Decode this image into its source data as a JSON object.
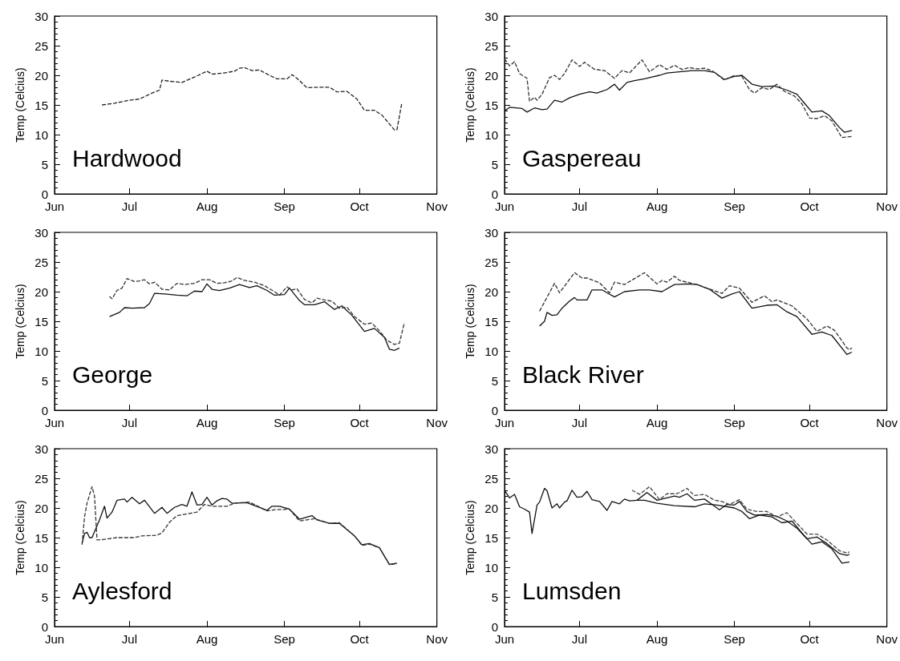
{
  "chart_data": [
    {
      "type": "line",
      "ylabel": "Temp (Celcius)",
      "annotations": [
        "Hardwood"
      ],
      "xlim": [
        "--06-01",
        "--11-01"
      ],
      "xticks": [
        {
          "value": "--06-01",
          "label": "Jun"
        },
        {
          "value": "--07-01",
          "label": "Jul"
        },
        {
          "value": "--08-01",
          "label": "Aug"
        },
        {
          "value": "--09-01",
          "label": "Sep"
        },
        {
          "value": "--10-01",
          "label": "Oct"
        },
        {
          "value": "--11-01",
          "label": "Nov"
        }
      ],
      "ylim": [
        0,
        30
      ],
      "yticks": [
        0,
        5,
        10,
        15,
        20,
        25,
        30
      ],
      "series": [
        {
          "color": "#222222",
          "line_style": "dashed",
          "x": [
            "--06-20",
            "--06-25",
            "--07-01",
            "--07-05",
            "--07-10",
            "--07-13",
            "--07-14",
            "--07-17",
            "--07-22",
            "--07-27",
            "--07-30",
            "--08-01",
            "--08-03",
            "--08-08",
            "--08-12",
            "--08-14",
            "--08-16",
            "--08-19",
            "--08-22",
            "--08-26",
            "--08-29",
            "--09-02",
            "--09-04",
            "--09-06",
            "--09-10",
            "--09-15",
            "--09-19",
            "--09-22",
            "--09-26",
            "--09-30",
            "--10-03",
            "--10-07",
            "--10-10",
            "--10-13",
            "--10-15",
            "--10-16",
            "--10-18"
          ],
          "values": [
            15,
            15.3,
            15.8,
            16,
            17,
            17.5,
            19.2,
            19,
            18.8,
            19.7,
            20.3,
            20.7,
            20.2,
            20.4,
            20.7,
            21.2,
            21.3,
            20.8,
            20.9,
            20,
            19.4,
            19.4,
            20.1,
            19.5,
            17.9,
            18,
            18,
            17.2,
            17.3,
            16,
            14.1,
            14.1,
            13.3,
            11.8,
            10.8,
            10.8,
            15.4
          ]
        }
      ]
    },
    {
      "type": "line",
      "ylabel": "Temp (Celcius)",
      "annotations": [
        "Gaspereau"
      ],
      "xlim": [
        "--06-01",
        "--11-01"
      ],
      "xticks": [
        {
          "value": "--06-01",
          "label": "Jun"
        },
        {
          "value": "--07-01",
          "label": "Jul"
        },
        {
          "value": "--08-01",
          "label": "Aug"
        },
        {
          "value": "--09-01",
          "label": "Sep"
        },
        {
          "value": "--10-01",
          "label": "Oct"
        },
        {
          "value": "--11-01",
          "label": "Nov"
        }
      ],
      "ylim": [
        0,
        30
      ],
      "yticks": [
        0,
        5,
        10,
        15,
        20,
        25,
        30
      ],
      "series": [
        {
          "color": "#111111",
          "line_style": "solid",
          "x": [
            "--06-01",
            "--06-03",
            "--06-08",
            "--06-10",
            "--06-13",
            "--06-16",
            "--06-18",
            "--06-21",
            "--06-24",
            "--06-27",
            "--07-01",
            "--07-05",
            "--07-08",
            "--07-12",
            "--07-15",
            "--07-17",
            "--07-20",
            "--07-23",
            "--07-27",
            "--07-30",
            "--08-02",
            "--08-05",
            "--08-10",
            "--08-15",
            "--08-20",
            "--08-24",
            "--08-28",
            "--09-01",
            "--09-04",
            "--09-08",
            "--09-12",
            "--09-17",
            "--09-22",
            "--09-26",
            "--09-29",
            "--10-02",
            "--10-06",
            "--10-09",
            "--10-13",
            "--10-15",
            "--10-18"
          ],
          "values": [
            14,
            14.6,
            14.4,
            13.8,
            14.5,
            14.2,
            14.3,
            15.8,
            15.5,
            16.2,
            16.8,
            17.2,
            17,
            17.6,
            18.5,
            17.5,
            18.8,
            19.1,
            19.4,
            19.7,
            20,
            20.4,
            20.6,
            20.8,
            20.8,
            20.5,
            19.3,
            19.8,
            20,
            18.5,
            18.1,
            18.2,
            17.5,
            16.8,
            15.3,
            13.8,
            14,
            13.2,
            11.2,
            10.4,
            10.7
          ]
        },
        {
          "color": "#333333",
          "line_style": "dashed",
          "x": [
            "--06-01",
            "--06-03",
            "--06-05",
            "--06-07",
            "--06-10",
            "--06-11",
            "--06-13",
            "--06-14",
            "--06-16",
            "--06-19",
            "--06-21",
            "--06-23",
            "--06-25",
            "--06-28",
            "--07-01",
            "--07-03",
            "--07-07",
            "--07-11",
            "--07-15",
            "--07-18",
            "--07-21",
            "--07-26",
            "--07-29",
            "--08-02",
            "--08-05",
            "--08-08",
            "--08-11",
            "--08-14",
            "--08-17",
            "--08-20",
            "--08-23",
            "--08-28",
            "--09-01",
            "--09-04",
            "--09-07",
            "--09-09",
            "--09-12",
            "--09-15",
            "--09-18",
            "--09-21",
            "--09-25",
            "--09-28",
            "--10-01",
            "--10-04",
            "--10-07",
            "--10-10",
            "--10-14",
            "--10-18"
          ],
          "values": [
            22.8,
            21.6,
            22.3,
            20.3,
            19.5,
            15.6,
            16.3,
            15.8,
            16.8,
            19.6,
            20,
            19.3,
            20.3,
            22.6,
            21.5,
            22.2,
            21,
            20.8,
            19.5,
            20.8,
            20.4,
            22.6,
            20.6,
            21.8,
            21,
            21.7,
            21,
            21.3,
            21.1,
            21.2,
            20.8,
            19.2,
            20,
            19.8,
            17.6,
            17,
            17.9,
            17.6,
            18.5,
            17.3,
            16.5,
            15.2,
            12.8,
            12.7,
            13.2,
            12.3,
            9.5,
            9.7
          ]
        }
      ]
    },
    {
      "type": "line",
      "ylabel": "Temp (Celcius)",
      "annotations": [
        "George"
      ],
      "xlim": [
        "--06-01",
        "--11-01"
      ],
      "xticks": [
        {
          "value": "--06-01",
          "label": "Jun"
        },
        {
          "value": "--07-01",
          "label": "Jul"
        },
        {
          "value": "--08-01",
          "label": "Aug"
        },
        {
          "value": "--09-01",
          "label": "Sep"
        },
        {
          "value": "--10-01",
          "label": "Oct"
        },
        {
          "value": "--11-01",
          "label": "Nov"
        }
      ],
      "ylim": [
        0,
        30
      ],
      "yticks": [
        0,
        5,
        10,
        15,
        20,
        25,
        30
      ],
      "series": [
        {
          "color": "#111111",
          "line_style": "solid",
          "x": [
            "--06-23",
            "--06-27",
            "--06-29",
            "--07-02",
            "--07-07",
            "--07-09",
            "--07-11",
            "--07-15",
            "--07-20",
            "--07-24",
            "--07-27",
            "--07-30",
            "--08-01",
            "--08-03",
            "--08-06",
            "--08-10",
            "--08-14",
            "--08-18",
            "--08-21",
            "--08-25",
            "--08-28",
            "--09-01",
            "--09-03",
            "--09-07",
            "--09-09",
            "--09-13",
            "--09-17",
            "--09-21",
            "--09-24",
            "--09-28",
            "--10-03",
            "--10-07",
            "--10-11",
            "--10-13",
            "--10-15",
            "--10-17"
          ],
          "values": [
            15.8,
            16.5,
            17.3,
            17.2,
            17.3,
            18,
            19.7,
            19.6,
            19.4,
            19.3,
            20.1,
            20,
            21.3,
            20.4,
            20.2,
            20.6,
            21.2,
            20.7,
            21,
            20.2,
            19.4,
            19.5,
            20.6,
            18.5,
            17.8,
            17.8,
            18.3,
            17,
            17.6,
            16,
            13.3,
            13.8,
            12.3,
            10.3,
            10.1,
            10.5
          ]
        },
        {
          "color": "#333333",
          "line_style": "dashed",
          "x": [
            "--06-23",
            "--06-24",
            "--06-26",
            "--06-28",
            "--06-30",
            "--07-03",
            "--07-05",
            "--07-07",
            "--07-09",
            "--07-11",
            "--07-14",
            "--07-17",
            "--07-20",
            "--07-23",
            "--07-27",
            "--07-30",
            "--08-02",
            "--08-05",
            "--08-08",
            "--08-11",
            "--08-13",
            "--08-16",
            "--08-20",
            "--08-24",
            "--08-28",
            "--08-30",
            "--09-02",
            "--09-04",
            "--09-06",
            "--09-09",
            "--09-12",
            "--09-14",
            "--09-17",
            "--09-20",
            "--09-23",
            "--09-26",
            "--09-29",
            "--10-03",
            "--10-06",
            "--10-09",
            "--10-12",
            "--10-15",
            "--10-17",
            "--10-19"
          ],
          "values": [
            19.2,
            18.8,
            20.2,
            20.6,
            22.2,
            21.7,
            21.8,
            22,
            21.3,
            21.6,
            20.4,
            20.3,
            21.4,
            21.2,
            21.4,
            22,
            22,
            21.4,
            21.5,
            21.8,
            22.4,
            21.9,
            21.6,
            21,
            20,
            19.4,
            20.8,
            20.3,
            20.5,
            18.7,
            18.1,
            18.9,
            18.6,
            18.4,
            17.2,
            17.4,
            15.8,
            14.5,
            14.7,
            13.4,
            11.8,
            11.1,
            11.3,
            14.8
          ]
        }
      ]
    },
    {
      "type": "line",
      "ylabel": "Temp (Celcius)",
      "annotations": [
        "Black River"
      ],
      "xlim": [
        "--06-01",
        "--11-01"
      ],
      "xticks": [
        {
          "value": "--06-01",
          "label": "Jun"
        },
        {
          "value": "--07-01",
          "label": "Jul"
        },
        {
          "value": "--08-01",
          "label": "Aug"
        },
        {
          "value": "--09-01",
          "label": "Sep"
        },
        {
          "value": "--10-01",
          "label": "Oct"
        },
        {
          "value": "--11-01",
          "label": "Nov"
        }
      ],
      "ylim": [
        0,
        30
      ],
      "yticks": [
        0,
        5,
        10,
        15,
        20,
        25,
        30
      ],
      "series": [
        {
          "color": "#111111",
          "line_style": "solid",
          "x": [
            "--06-15",
            "--06-17",
            "--06-18",
            "--06-20",
            "--06-22",
            "--06-24",
            "--06-27",
            "--06-29",
            "--06-30",
            "--07-04",
            "--07-06",
            "--07-10",
            "--07-15",
            "--07-19",
            "--07-25",
            "--07-29",
            "--08-03",
            "--08-08",
            "--08-13",
            "--08-17",
            "--08-22",
            "--08-27",
            "--08-31",
            "--09-03",
            "--09-08",
            "--09-14",
            "--09-18",
            "--09-22",
            "--09-26",
            "--10-02",
            "--10-06",
            "--10-10",
            "--10-16",
            "--10-18"
          ],
          "values": [
            14.2,
            15,
            16.5,
            16,
            16.1,
            17.2,
            18.4,
            19,
            18.6,
            18.6,
            20.3,
            20.3,
            19.1,
            20,
            20.3,
            20.3,
            20,
            21.2,
            21.3,
            21.2,
            20.4,
            18.9,
            19.6,
            20,
            17.2,
            17.7,
            17.8,
            16.6,
            15.8,
            12.8,
            13.2,
            12.6,
            9.4,
            9.8
          ]
        },
        {
          "color": "#333333",
          "line_style": "dashed",
          "x": [
            "--06-15",
            "--06-21",
            "--06-23",
            "--06-29",
            "--07-02",
            "--07-04",
            "--07-09",
            "--07-13",
            "--07-15",
            "--07-19",
            "--07-27",
            "--08-01",
            "--08-03",
            "--08-05",
            "--08-08",
            "--08-10",
            "--08-17",
            "--08-27",
            "--08-30",
            "--09-03",
            "--09-08",
            "--09-13",
            "--09-16",
            "--09-18",
            "--09-24",
            "--09-30",
            "--10-04",
            "--10-08",
            "--10-11",
            "--10-16",
            "--10-17",
            "--10-18"
          ],
          "values": [
            16.7,
            21.4,
            19.8,
            23.2,
            22.3,
            22.3,
            21.5,
            19.8,
            21.6,
            21.2,
            23.2,
            21.3,
            21.9,
            21.6,
            22.6,
            21.9,
            21.2,
            19.7,
            21,
            20.6,
            18.2,
            19.3,
            18.3,
            18.6,
            17.6,
            15.4,
            13.3,
            14.2,
            13.5,
            10.5,
            10.2,
            10.5
          ]
        }
      ]
    },
    {
      "type": "line",
      "ylabel": "Temp (Celcius)",
      "annotations": [
        "Aylesford"
      ],
      "xlim": [
        "--06-01",
        "--11-01"
      ],
      "xticks": [
        {
          "value": "--06-01",
          "label": "Jun"
        },
        {
          "value": "--07-01",
          "label": "Jul"
        },
        {
          "value": "--08-01",
          "label": "Aug"
        },
        {
          "value": "--09-01",
          "label": "Sep"
        },
        {
          "value": "--10-01",
          "label": "Oct"
        },
        {
          "value": "--11-01",
          "label": "Nov"
        }
      ],
      "ylim": [
        0,
        30
      ],
      "yticks": [
        0,
        5,
        10,
        15,
        20,
        25,
        30
      ],
      "series": [
        {
          "color": "#111111",
          "line_style": "solid",
          "x": [
            "--06-12",
            "--06-13",
            "--06-14",
            "--06-15",
            "--06-16",
            "--06-19",
            "--06-21",
            "--06-22",
            "--06-24",
            "--06-26",
            "--06-29",
            "--06-30",
            "--07-02",
            "--07-05",
            "--07-07",
            "--07-11",
            "--07-14",
            "--07-16",
            "--07-19",
            "--07-22",
            "--07-24",
            "--07-26",
            "--07-28",
            "--07-30",
            "--08-01",
            "--08-03",
            "--08-05",
            "--08-07",
            "--08-09",
            "--08-11",
            "--08-17",
            "--08-25",
            "--08-27",
            "--08-30",
            "--09-03",
            "--09-07",
            "--09-12",
            "--09-14",
            "--09-19",
            "--09-23",
            "--09-29",
            "--10-02",
            "--10-05",
            "--10-09",
            "--10-13",
            "--10-16"
          ],
          "values": [
            14,
            15.7,
            15.9,
            15,
            15,
            18,
            20.3,
            18.3,
            19.3,
            21.3,
            21.5,
            21,
            21.8,
            20.7,
            21.3,
            19.1,
            20.1,
            19.1,
            20.1,
            20.6,
            20.3,
            22.7,
            20.5,
            20.6,
            21.8,
            20.5,
            21.2,
            21.6,
            21.5,
            20.8,
            20.9,
            19.6,
            20.3,
            20.3,
            19.8,
            18.1,
            18.7,
            18,
            17.4,
            17.4,
            15.3,
            13.8,
            14,
            13.3,
            10.5,
            10.7
          ]
        },
        {
          "color": "#333333",
          "line_style": "dashed",
          "x": [
            "--06-12",
            "--06-13",
            "--06-14",
            "--06-16",
            "--06-17",
            "--06-18",
            "--06-21",
            "--06-26",
            "--07-03",
            "--07-06",
            "--07-12",
            "--07-14",
            "--07-17",
            "--07-20",
            "--07-24",
            "--07-28",
            "--07-31",
            "--08-03",
            "--08-09",
            "--08-12",
            "--08-18",
            "--08-25",
            "--08-28",
            "--09-03",
            "--09-07",
            "--09-13",
            "--09-19",
            "--09-23",
            "--09-29",
            "--10-02",
            "--10-05",
            "--10-09",
            "--10-13",
            "--10-16"
          ],
          "values": [
            13.8,
            18.5,
            20.8,
            23.6,
            22,
            14.6,
            14.7,
            15,
            15,
            15.3,
            15.4,
            15.8,
            17.6,
            18.7,
            19,
            19.3,
            20.6,
            20.3,
            20.3,
            20.8,
            21,
            19.5,
            19.7,
            19.8,
            17.8,
            18.2,
            17.4,
            17.5,
            15.3,
            13.7,
            13.9,
            13.3,
            10.4,
            10.6
          ]
        }
      ]
    },
    {
      "type": "line",
      "ylabel": "Temp (Celcius)",
      "annotations": [
        "Lumsden"
      ],
      "xlim": [
        "--06-01",
        "--11-01"
      ],
      "xticks": [
        {
          "value": "--06-01",
          "label": "Jun"
        },
        {
          "value": "--07-01",
          "label": "Jul"
        },
        {
          "value": "--08-01",
          "label": "Aug"
        },
        {
          "value": "--09-01",
          "label": "Sep"
        },
        {
          "value": "--10-01",
          "label": "Oct"
        },
        {
          "value": "--11-01",
          "label": "Nov"
        }
      ],
      "ylim": [
        0,
        30
      ],
      "yticks": [
        0,
        5,
        10,
        15,
        20,
        25,
        30
      ],
      "series": [
        {
          "color": "#111111",
          "line_style": "solid",
          "x": [
            "--06-01",
            "--06-03",
            "--06-05",
            "--06-07",
            "--06-09",
            "--06-11",
            "--06-12",
            "--06-14",
            "--06-15",
            "--06-17",
            "--06-18",
            "--06-20",
            "--06-22",
            "--06-23",
            "--06-25",
            "--06-26",
            "--06-28",
            "--06-30",
            "--07-02",
            "--07-04",
            "--07-06",
            "--07-09",
            "--07-12",
            "--07-14",
            "--07-17",
            "--07-19",
            "--07-21",
            "--07-24",
            "--07-27",
            "--08-01",
            "--08-08",
            "--08-16",
            "--08-20",
            "--08-25",
            "--09-01",
            "--09-04",
            "--09-07",
            "--09-11",
            "--09-16",
            "--09-20",
            "--09-24",
            "--09-28",
            "--10-02",
            "--10-06",
            "--10-10",
            "--10-14",
            "--10-17"
          ],
          "values": [
            23,
            21.7,
            22.3,
            20.2,
            19.8,
            19.3,
            15.7,
            20.5,
            21,
            23.3,
            22.9,
            20,
            20.7,
            20,
            21,
            21.2,
            23,
            21.8,
            21.9,
            22.8,
            21.4,
            21.1,
            19.6,
            21.1,
            20.7,
            21.5,
            21.2,
            21.3,
            21.3,
            20.8,
            20.4,
            20.2,
            20.7,
            20.5,
            20,
            19.4,
            18.2,
            18.8,
            18.5,
            17.5,
            17.8,
            15.8,
            13.9,
            14.3,
            13.1,
            10.7,
            10.9
          ]
        },
        {
          "color": "#111111",
          "line_style": "solid",
          "x": [
            "--07-24",
            "--07-28",
            "--08-01",
            "--08-04",
            "--08-08",
            "--08-10",
            "--08-13",
            "--08-16",
            "--08-20",
            "--08-23",
            "--08-26",
            "--08-29",
            "--09-01",
            "--09-03",
            "--09-06",
            "--09-09",
            "--09-14",
            "--09-18",
            "--09-22",
            "--09-26",
            "--09-30",
            "--10-04",
            "--10-08",
            "--10-13",
            "--10-16",
            "--10-17"
          ],
          "values": [
            21.3,
            22.6,
            21.3,
            21.6,
            22,
            21.8,
            22.4,
            21.3,
            21.5,
            20.6,
            19.7,
            20.6,
            20.5,
            21.1,
            19.4,
            18.8,
            18.9,
            18.6,
            17.8,
            16.6,
            14.8,
            15.1,
            14,
            12.3,
            12,
            12.2
          ]
        },
        {
          "color": "#444444",
          "line_style": "dashed",
          "x": [
            "--07-22",
            "--07-25",
            "--07-29",
            "--08-02",
            "--08-05",
            "--08-09",
            "--08-13",
            "--08-16",
            "--08-20",
            "--08-24",
            "--08-27",
            "--08-30",
            "--09-03",
            "--09-06",
            "--09-10",
            "--09-14",
            "--09-18",
            "--09-22",
            "--09-26",
            "--09-30",
            "--10-04",
            "--10-08",
            "--10-13",
            "--10-16",
            "--10-17"
          ],
          "values": [
            23,
            22.3,
            23.6,
            21.4,
            22.4,
            22.4,
            23.3,
            22.1,
            22.3,
            21.3,
            21.1,
            20.6,
            21.4,
            19.8,
            19.4,
            19.4,
            18.5,
            19.2,
            17.4,
            15.6,
            15.6,
            14.6,
            12.8,
            12.4,
            12.6
          ]
        }
      ]
    }
  ]
}
